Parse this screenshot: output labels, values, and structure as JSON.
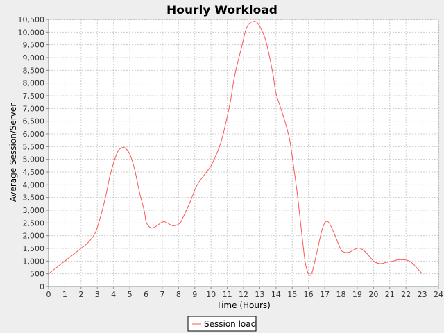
{
  "chart_data": {
    "type": "line",
    "title": "Hourly Workload",
    "xlabel": "Time (Hours)",
    "ylabel": "Average Session/Server",
    "xlim": [
      0,
      24
    ],
    "ylim": [
      0,
      10500
    ],
    "x_ticks": [
      0,
      1,
      2,
      3,
      4,
      5,
      6,
      7,
      8,
      9,
      10,
      11,
      12,
      13,
      14,
      15,
      16,
      17,
      18,
      19,
      20,
      21,
      22,
      23,
      24
    ],
    "x_tick_labels": [
      "0",
      "1",
      "2",
      "3",
      "4",
      "5",
      "6",
      "7",
      "8",
      "9",
      "10",
      "11",
      "12",
      "13",
      "14",
      "15",
      "16",
      "17",
      "18",
      "19",
      "20",
      "21",
      "22",
      "23",
      "24"
    ],
    "y_ticks": [
      0,
      500,
      1000,
      1500,
      2000,
      2500,
      3000,
      3500,
      4000,
      4500,
      5000,
      5500,
      6000,
      6500,
      7000,
      7500,
      8000,
      8500,
      9000,
      9500,
      10000,
      10500
    ],
    "y_tick_labels": [
      "0",
      "500",
      "1,000",
      "1,500",
      "2,000",
      "2,500",
      "3,000",
      "3,500",
      "4,000",
      "4,500",
      "5,000",
      "5,500",
      "6,000",
      "6,500",
      "7,000",
      "7,500",
      "8,000",
      "8,500",
      "9,000",
      "9,500",
      "10,000",
      "10,500"
    ],
    "grid": true,
    "legend_position": "bottom-center",
    "series": [
      {
        "name": "Session load",
        "color": "#ff5555",
        "x": [
          0,
          0.5,
          1,
          1.5,
          1.8,
          2.0,
          2.3,
          2.6,
          2.9,
          3.2,
          3.5,
          3.8,
          4.1,
          4.3,
          4.5,
          4.7,
          5.0,
          5.3,
          5.6,
          5.9,
          6.0,
          6.2,
          6.4,
          6.7,
          6.9,
          7.1,
          7.3,
          7.6,
          7.8,
          8.1,
          8.3,
          8.7,
          9.0,
          9.2,
          9.6,
          10.0,
          10.3,
          10.6,
          10.9,
          11.2,
          11.4,
          11.6,
          11.9,
          12.1,
          12.3,
          12.5,
          12.8,
          13.1,
          13.4,
          13.8,
          14.0,
          14.4,
          14.8,
          15.0,
          15.3,
          15.6,
          15.8,
          16.0,
          16.2,
          16.5,
          16.8,
          17.0,
          17.2,
          17.4,
          17.7,
          18.0,
          18.2,
          18.5,
          18.8,
          19.0,
          19.2,
          19.6,
          20.0,
          20.4,
          20.8,
          21.2,
          21.5,
          21.9,
          22.2,
          22.5,
          23.0
        ],
        "values": [
          500,
          750,
          1000,
          1250,
          1400,
          1500,
          1650,
          1850,
          2150,
          2750,
          3500,
          4400,
          5050,
          5350,
          5450,
          5450,
          5200,
          4600,
          3700,
          2950,
          2550,
          2350,
          2300,
          2400,
          2500,
          2550,
          2500,
          2400,
          2400,
          2500,
          2750,
          3300,
          3800,
          4050,
          4400,
          4750,
          5150,
          5650,
          6400,
          7300,
          8100,
          8700,
          9450,
          10000,
          10300,
          10400,
          10400,
          10100,
          9600,
          8400,
          7600,
          6800,
          5900,
          5100,
          3700,
          2000,
          950,
          500,
          520,
          1300,
          2150,
          2500,
          2550,
          2350,
          1900,
          1450,
          1350,
          1350,
          1450,
          1500,
          1500,
          1300,
          1000,
          900,
          950,
          1000,
          1050,
          1050,
          1000,
          850,
          500
        ]
      }
    ]
  }
}
